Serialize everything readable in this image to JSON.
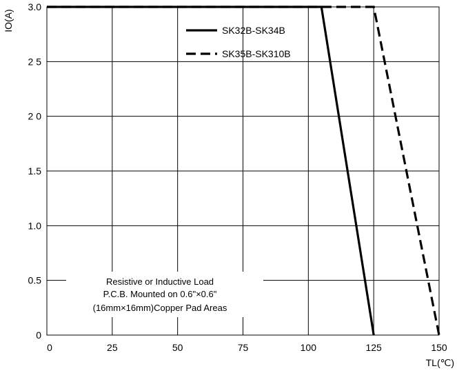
{
  "chart_data": {
    "type": "line",
    "xlabel": "TL(℃)",
    "ylabel": "IO(A)",
    "xlim": [
      0,
      150
    ],
    "ylim": [
      0,
      3.0
    ],
    "x_ticks": [
      0,
      25,
      50,
      75,
      100,
      125,
      150
    ],
    "x_tick_labels": [
      "0",
      "25",
      "50",
      "75",
      "100",
      "125",
      "150"
    ],
    "y_ticks": [
      0,
      0.5,
      1.0,
      1.5,
      2.0,
      2.5,
      3.0
    ],
    "y_tick_labels": [
      "0",
      "0.5",
      "1.0",
      "1.5",
      "2 0",
      "2 5",
      "3.0"
    ],
    "grid": true,
    "legend_position": "top-right",
    "series": [
      {
        "name": "SK32B-SK34B",
        "style": "solid",
        "x": [
          0,
          105,
          125
        ],
        "y": [
          3.0,
          3.0,
          0
        ]
      },
      {
        "name": "SK35B-SK310B",
        "style": "dashed",
        "x": [
          0,
          125,
          150
        ],
        "y": [
          3.0,
          3.0,
          0
        ]
      }
    ],
    "annotation": [
      "Resistive or Inductive Load",
      "P.C.B. Mounted on 0.6\"×0.6\"",
      "(16mm×16mm)Copper Pad Areas"
    ],
    "colors": {
      "line": "#000000",
      "grid": "#000000",
      "background": "#ffffff"
    }
  }
}
